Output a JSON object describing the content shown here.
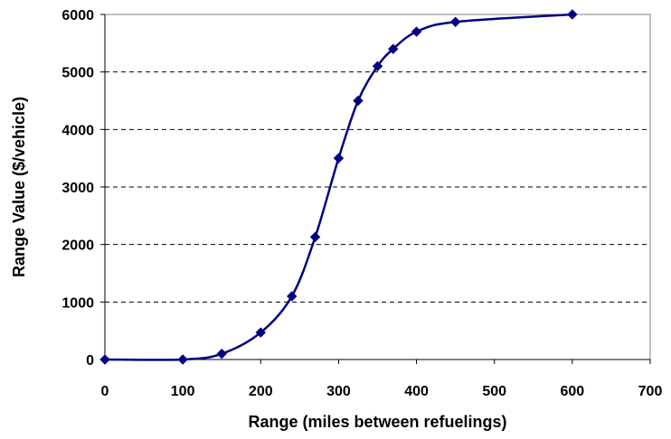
{
  "chart_data": {
    "type": "line",
    "title": "",
    "xlabel": "Range (miles between refuelings)",
    "ylabel": "Range Value ($/vehicle)",
    "xlim": [
      0,
      700
    ],
    "ylim": [
      0,
      6000
    ],
    "xticks": [
      0,
      100,
      200,
      300,
      400,
      500,
      600,
      700
    ],
    "yticks": [
      0,
      1000,
      2000,
      3000,
      4000,
      5000,
      6000
    ],
    "grid": "horizontal dashed",
    "legend": "none",
    "series": [
      {
        "color": "#000080",
        "marker": "diamond",
        "smooth": true,
        "points": [
          {
            "x": 0,
            "y": 0
          },
          {
            "x": 100,
            "y": 0
          },
          {
            "x": 150,
            "y": 100
          },
          {
            "x": 200,
            "y": 470
          },
          {
            "x": 240,
            "y": 1100
          },
          {
            "x": 270,
            "y": 2130
          },
          {
            "x": 300,
            "y": 3500
          },
          {
            "x": 325,
            "y": 4500
          },
          {
            "x": 350,
            "y": 5100
          },
          {
            "x": 370,
            "y": 5400
          },
          {
            "x": 400,
            "y": 5700
          },
          {
            "x": 450,
            "y": 5870
          },
          {
            "x": 600,
            "y": 6000
          }
        ]
      }
    ]
  }
}
